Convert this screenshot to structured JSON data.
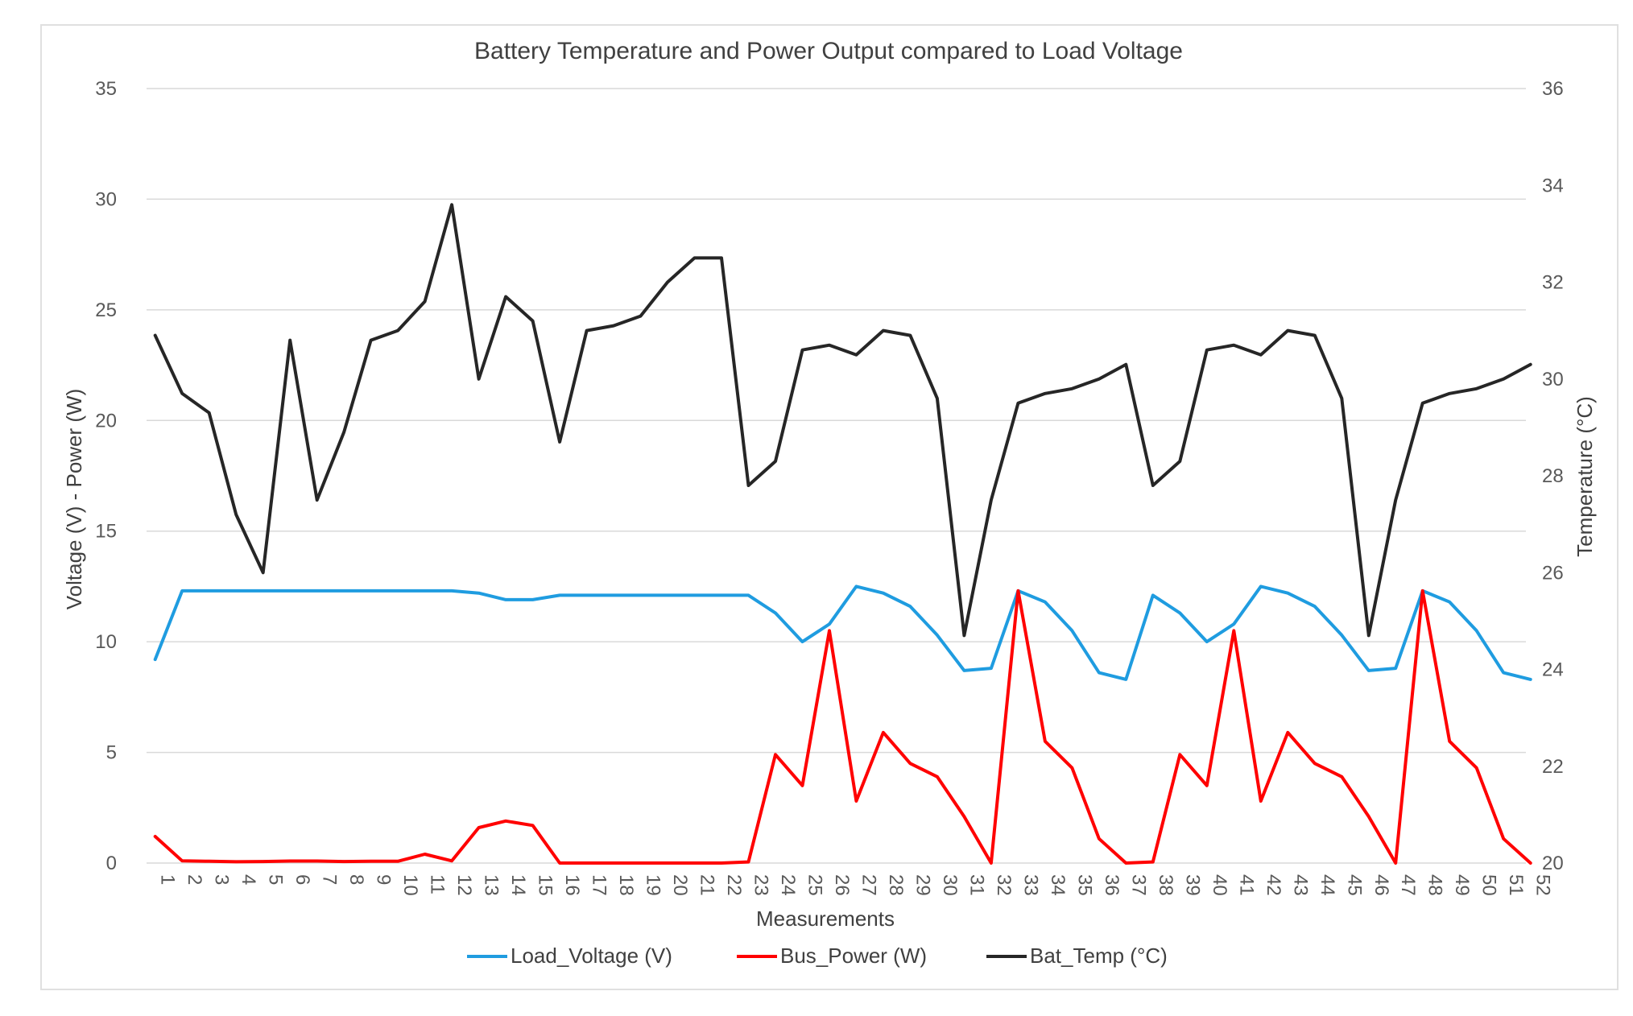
{
  "chart_data": {
    "type": "line",
    "title": "Battery Temperature and Power Output compared to Load Voltage",
    "xlabel": "Measurements",
    "ylabel": "Voltage (V) - Power (W)",
    "y2label": "Temperature (°C)",
    "ylim": [
      0,
      35
    ],
    "y2lim": [
      20,
      36
    ],
    "yticks": [
      0,
      5,
      10,
      15,
      20,
      25,
      30,
      35
    ],
    "y2ticks": [
      20,
      22,
      24,
      26,
      28,
      30,
      32,
      34,
      36
    ],
    "grid": true,
    "legend_position": "bottom",
    "categories": [
      1,
      2,
      3,
      4,
      5,
      6,
      7,
      8,
      9,
      10,
      11,
      12,
      13,
      14,
      15,
      16,
      17,
      18,
      19,
      20,
      21,
      22,
      23,
      24,
      25,
      26,
      27,
      28,
      29,
      30,
      31,
      32,
      33,
      34,
      35,
      36,
      37,
      38,
      39,
      40,
      41,
      42,
      43,
      44,
      45,
      46,
      47,
      48,
      49,
      50,
      51,
      52
    ],
    "series": [
      {
        "name": "Load_Voltage (V)",
        "axis": "left",
        "color": "#1f9ce0",
        "values": [
          9.2,
          12.3,
          12.3,
          12.3,
          12.3,
          12.3,
          12.3,
          12.3,
          12.3,
          12.3,
          12.3,
          12.3,
          12.2,
          11.9,
          11.9,
          12.1,
          12.1,
          12.1,
          12.1,
          12.1,
          12.1,
          12.1,
          12.1,
          11.3,
          10.0,
          10.8,
          12.5,
          12.2,
          11.6,
          10.3,
          8.7,
          8.8,
          12.3,
          11.8,
          10.5,
          8.6,
          8.3,
          12.1,
          11.3,
          10.0,
          10.8,
          12.5,
          12.2,
          11.6,
          10.3,
          8.7,
          8.8,
          12.3,
          11.8,
          10.5,
          8.6,
          8.3
        ]
      },
      {
        "name": "Bus_Power (W)",
        "axis": "left",
        "color": "#ff0000",
        "values": [
          1.2,
          0.1,
          0.08,
          0.06,
          0.07,
          0.09,
          0.09,
          0.07,
          0.08,
          0.08,
          0.4,
          0.1,
          1.6,
          1.9,
          1.7,
          0.0,
          0.0,
          0.0,
          0.0,
          0.0,
          0.0,
          0.0,
          0.05,
          4.9,
          3.5,
          10.5,
          2.8,
          5.9,
          4.5,
          3.9,
          2.1,
          0.0,
          12.3,
          5.5,
          4.3,
          1.1,
          0.0,
          0.05,
          4.9,
          3.5,
          10.5,
          2.8,
          5.9,
          4.5,
          3.9,
          2.1,
          0.0,
          12.3,
          5.5,
          4.3,
          1.1,
          0.0
        ]
      },
      {
        "name": "Bat_Temp (°C)",
        "axis": "right",
        "color": "#262626",
        "values": [
          30.9,
          29.7,
          29.3,
          27.2,
          26.0,
          30.8,
          27.5,
          28.9,
          30.8,
          31.0,
          31.6,
          33.6,
          30.0,
          31.7,
          31.2,
          28.7,
          31.0,
          31.1,
          31.3,
          32.0,
          32.5,
          32.5,
          27.8,
          28.3,
          30.6,
          30.7,
          30.5,
          31.0,
          30.9,
          29.6,
          24.7,
          27.5,
          29.5,
          29.7,
          29.8,
          30.0,
          30.3,
          27.8,
          28.3,
          30.6,
          30.7,
          30.5,
          31.0,
          30.9,
          29.6,
          24.7,
          27.5,
          29.5,
          29.7,
          29.8,
          30.0,
          30.3
        ]
      }
    ]
  }
}
